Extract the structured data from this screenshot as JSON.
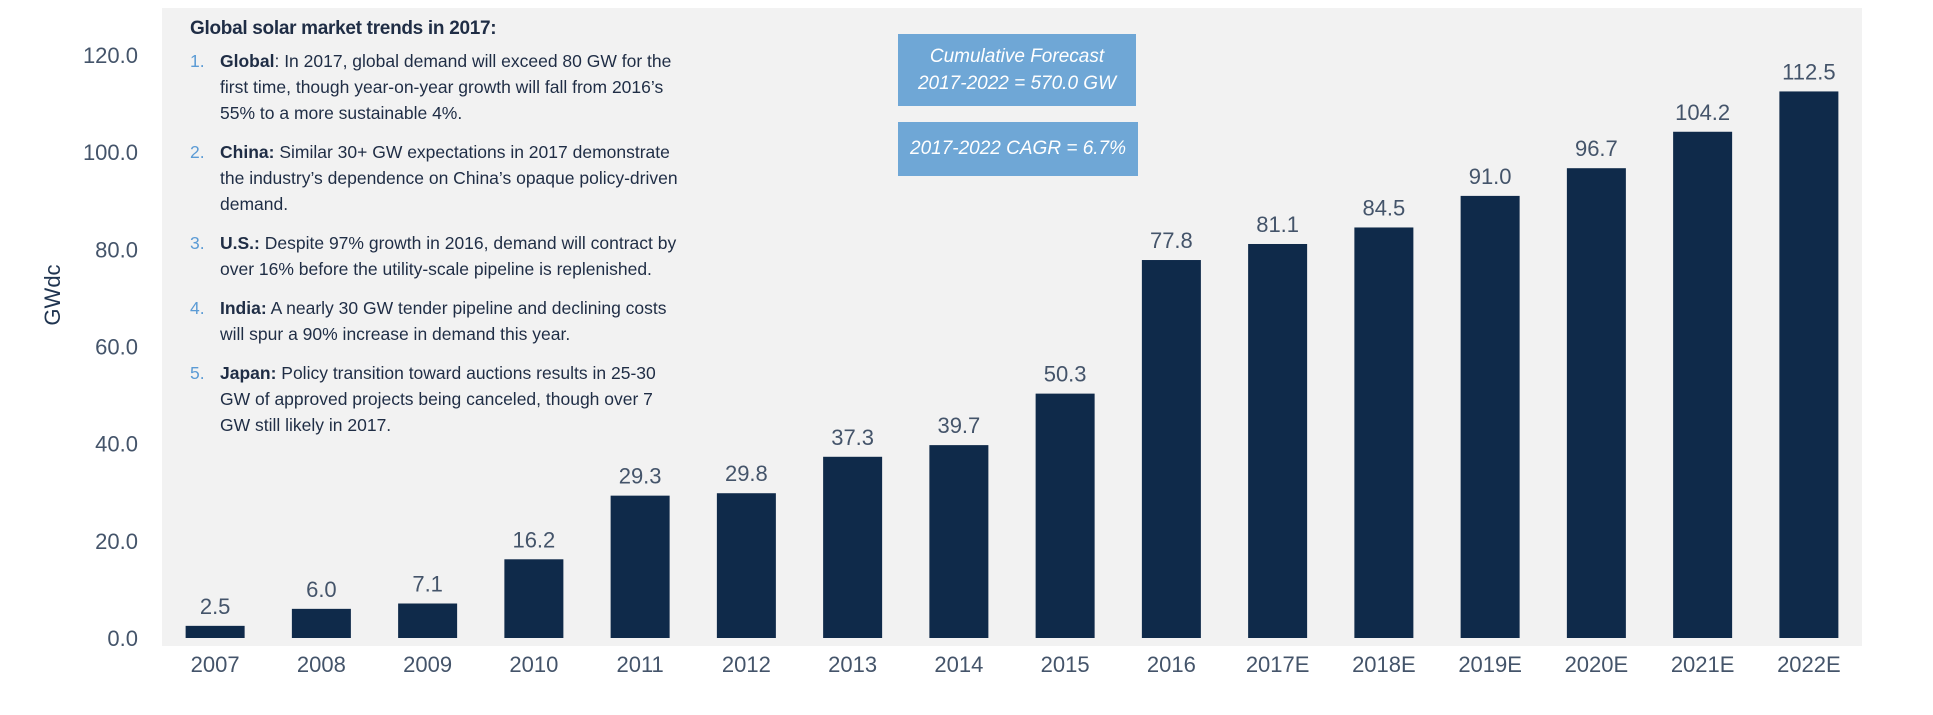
{
  "notes": {
    "title": "Global solar market trends in 2017:",
    "items": [
      {
        "num": "1.",
        "head": "Global",
        "sep": ": ",
        "text": "In 2017, global demand will exceed 80 GW for the first time, though year-on-year growth will fall from 2016’s 55% to a more sustainable 4%."
      },
      {
        "num": "2.",
        "head": "China:",
        "sep": " ",
        "text": "Similar 30+ GW expectations in 2017 demonstrate the industry’s dependence on China’s opaque policy-driven demand."
      },
      {
        "num": "3.",
        "head": "U.S.:",
        "sep": " ",
        "text": "Despite 97% growth in 2016, demand will contract by over 16% before the utility-scale pipeline is replenished."
      },
      {
        "num": "4.",
        "head": "India:",
        "sep": " ",
        "text": "A nearly 30 GW tender pipeline and declining costs will spur a 90% increase in demand this year."
      },
      {
        "num": "5.",
        "head": "Japan:",
        "sep": " ",
        "text": "Policy transition toward auctions results in 25-30 GW of approved projects being canceled, though over 7 GW still likely in 2017."
      }
    ]
  },
  "callouts": {
    "forecast_line1": "Cumulative Forecast",
    "forecast_line2": "2017-2022 = 570.0 GW",
    "cagr": "2017-2022 CAGR = 6.7%"
  },
  "colors": {
    "bar": "#0f2a4a",
    "plot_background": "#f2f2f2",
    "callout": "#6fa7d6",
    "number_accent": "#5b9bd5"
  },
  "chart_data": {
    "type": "bar",
    "title": "",
    "xlabel": "",
    "ylabel": "GWdc",
    "categories": [
      "2007",
      "2008",
      "2009",
      "2010",
      "2011",
      "2012",
      "2013",
      "2014",
      "2015",
      "2016",
      "2017E",
      "2018E",
      "2019E",
      "2020E",
      "2021E",
      "2022E"
    ],
    "values": [
      2.5,
      6.0,
      7.1,
      16.2,
      29.3,
      29.8,
      37.3,
      39.7,
      50.3,
      77.8,
      81.1,
      84.5,
      91.0,
      96.7,
      104.2,
      112.5
    ],
    "data_labels": [
      "2.5",
      "6.0",
      "7.1",
      "16.2",
      "29.3",
      "29.8",
      "37.3",
      "39.7",
      "50.3",
      "77.8",
      "81.1",
      "84.5",
      "91.0",
      "96.7",
      "104.2",
      "112.5"
    ],
    "yticks": [
      "0.0",
      "20.0",
      "40.0",
      "60.0",
      "80.0",
      "100.0",
      "120.0"
    ],
    "ylim": [
      0,
      130
    ],
    "grid": false,
    "legend": "none"
  }
}
